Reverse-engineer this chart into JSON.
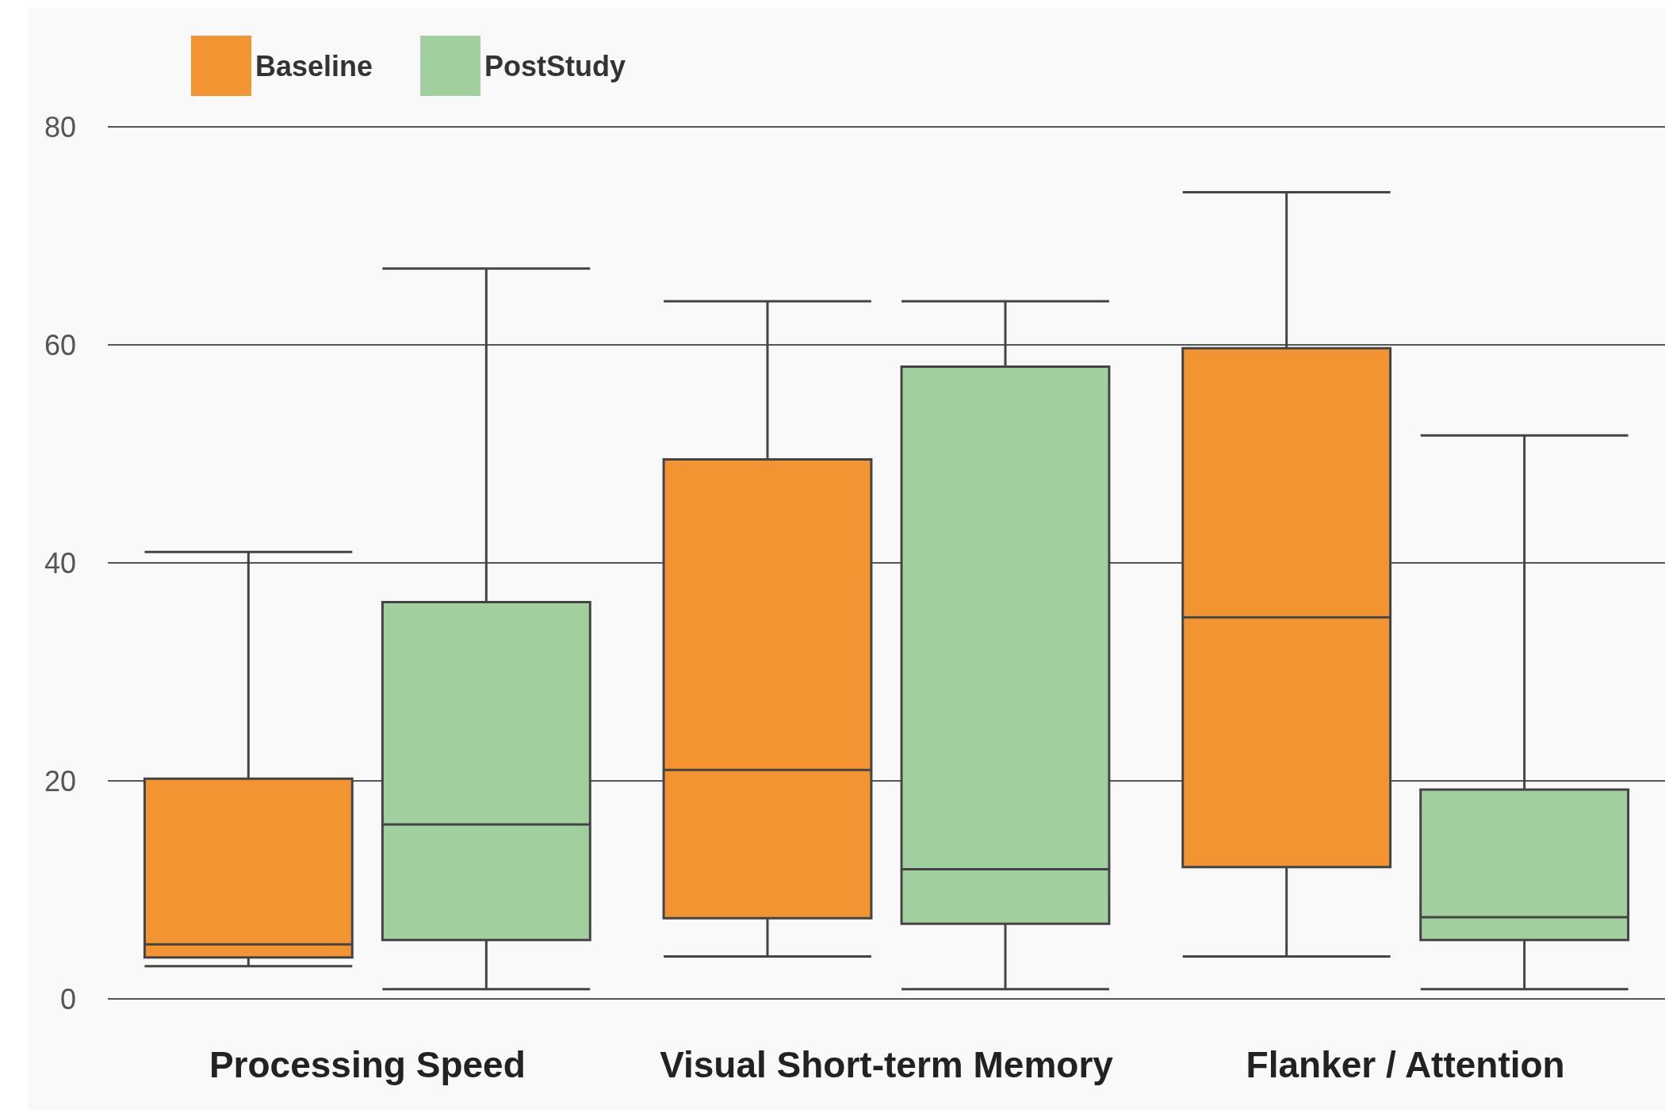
{
  "chart_data": {
    "type": "box",
    "categories": [
      "Processing Speed",
      "Visual Short-term Memory",
      "Flanker / Attention"
    ],
    "series": [
      {
        "name": "Baseline",
        "color": "#f39433",
        "boxes": [
          {
            "low": 3,
            "q1": 3.8,
            "median": 5,
            "q3": 20.2,
            "high": 41
          },
          {
            "low": 3.9,
            "q1": 7.4,
            "median": 21,
            "q3": 49.5,
            "high": 64
          },
          {
            "low": 3.9,
            "q1": 12.1,
            "median": 35,
            "q3": 59.7,
            "high": 74
          }
        ]
      },
      {
        "name": "PostStudy",
        "color": "#a1d09e",
        "boxes": [
          {
            "low": 0.9,
            "q1": 5.4,
            "median": 16,
            "q3": 36.4,
            "high": 67
          },
          {
            "low": 0.9,
            "q1": 6.9,
            "median": 11.9,
            "q3": 58,
            "high": 64
          },
          {
            "low": 0.9,
            "q1": 5.4,
            "median": 7.5,
            "q3": 19.2,
            "high": 51.7
          }
        ]
      }
    ],
    "ylim": [
      0,
      80
    ],
    "yticks": [
      0,
      20,
      40,
      60,
      80
    ],
    "grid": "y",
    "legend": "top left"
  }
}
